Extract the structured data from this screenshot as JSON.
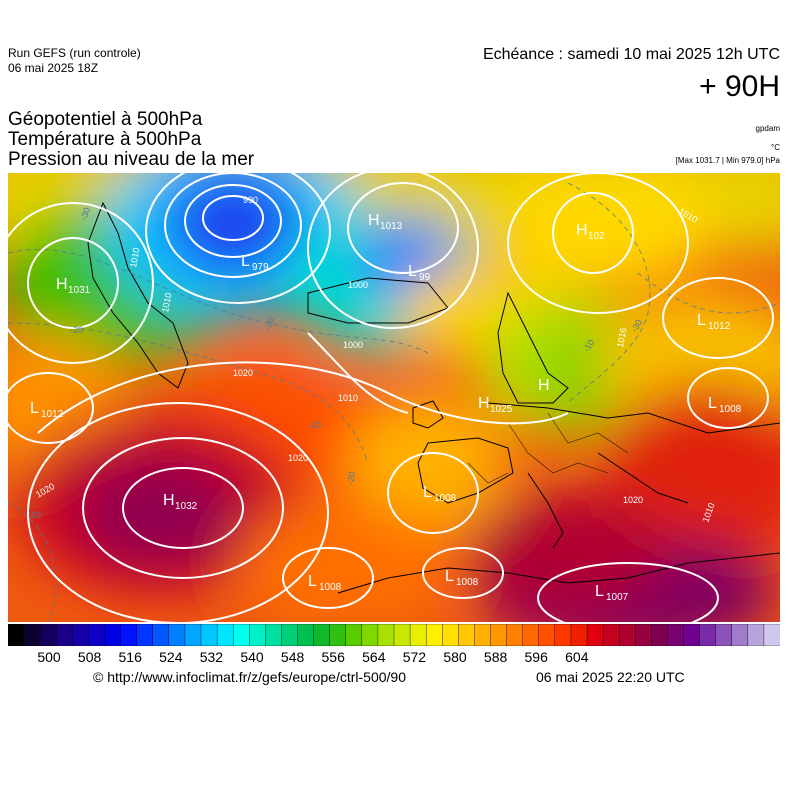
{
  "header": {
    "run_title": "Run GEFS (run controle)",
    "run_date": "06 mai 2025 18Z",
    "echeance": "Echéance : samedi 10 mai 2025 12h UTC",
    "lead_time": "+ 90H"
  },
  "parameters": {
    "line1": "Géopotentiel à 500hPa",
    "line2": "Température à 500hPa",
    "line3": "Pression au niveau de la mer"
  },
  "units": {
    "gpdam": "gpdam",
    "celsius": "°C",
    "maxmin": "[Max 1031.7 | Min 979.0] hPa"
  },
  "pressure_centers": [
    {
      "type": "H",
      "value": "1031"
    },
    {
      "type": "H",
      "value": "1013"
    },
    {
      "type": "H",
      "value": "102"
    },
    {
      "type": "L",
      "value": "979"
    },
    {
      "type": "L",
      "value": "99"
    },
    {
      "type": "L",
      "value": "1012"
    },
    {
      "type": "L",
      "value": "1012"
    },
    {
      "type": "H",
      "value": "1025"
    },
    {
      "type": "H",
      "value": ""
    },
    {
      "type": "L",
      "value": "1008"
    },
    {
      "type": "H",
      "value": "1032"
    },
    {
      "type": "L",
      "value": "1008"
    },
    {
      "type": "L",
      "value": "1008"
    },
    {
      "type": "L",
      "value": "1008"
    },
    {
      "type": "L",
      "value": "1007"
    }
  ],
  "isobar_labels": [
    "990",
    "1010",
    "1010",
    "1000",
    "1000",
    "1010",
    "1020",
    "1020",
    "1020",
    "1010",
    "1010",
    "1016",
    "1020"
  ],
  "temperature_labels": [
    "-30",
    "-20",
    "-20",
    "-20",
    "-20",
    "-10",
    "-10",
    "-30"
  ],
  "colorbar": {
    "ticks": [
      "500",
      "508",
      "516",
      "524",
      "532",
      "540",
      "548",
      "556",
      "564",
      "572",
      "580",
      "588",
      "596",
      "604"
    ],
    "colors": [
      "#000000",
      "#0b0030",
      "#14005c",
      "#1a0088",
      "#1700a8",
      "#0e00c8",
      "#0000e6",
      "#0012ff",
      "#0036ff",
      "#0059ff",
      "#0080ff",
      "#00a6ff",
      "#00c8ff",
      "#00e6ff",
      "#00ffec",
      "#00f0c8",
      "#00e0a0",
      "#00d078",
      "#00c050",
      "#10b82c",
      "#30c010",
      "#58cc00",
      "#80d800",
      "#a8e000",
      "#c8e800",
      "#e8f000",
      "#fff000",
      "#ffe000",
      "#ffc800",
      "#ffb000",
      "#ff9800",
      "#ff8000",
      "#ff6800",
      "#ff5000",
      "#ff3800",
      "#f02000",
      "#e00010",
      "#c80020",
      "#b00030",
      "#980040",
      "#800050",
      "#780070",
      "#700090",
      "#7a2aa8",
      "#8c52bc",
      "#a07ccc",
      "#b8a4dc",
      "#d0c8ec"
    ]
  },
  "footer": {
    "copyright": "© http://www.infoclimat.fr/z/gefs/europe/ctrl-500/90",
    "generated": "06 mai 2025 22:20 UTC"
  }
}
